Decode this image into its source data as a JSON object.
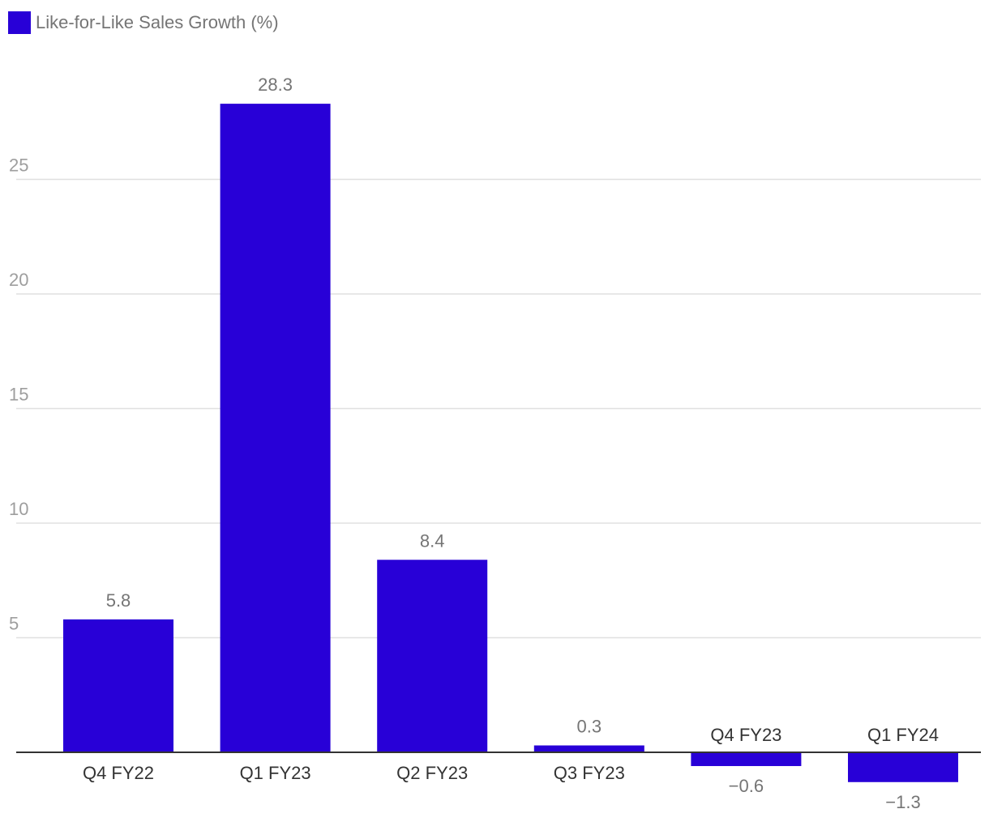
{
  "chart_data": {
    "type": "bar",
    "categories": [
      "Q4 FY22",
      "Q1 FY23",
      "Q2 FY23",
      "Q3 FY23",
      "Q4 FY23",
      "Q1 FY24"
    ],
    "series": [
      {
        "name": "Like-for-Like Sales Growth (%)",
        "values": [
          5.8,
          28.3,
          8.4,
          0.3,
          -0.6,
          -1.3
        ],
        "color": "#2800d7"
      }
    ],
    "value_labels": [
      "5.8",
      "28.3",
      "8.4",
      "0.3",
      "−0.6",
      "−1.3"
    ],
    "ylim": [
      -2,
      30
    ],
    "yticks": [
      5,
      10,
      15,
      20,
      25
    ],
    "grid": true,
    "legend": "top-left",
    "title": "",
    "xlabel": "",
    "ylabel": ""
  }
}
